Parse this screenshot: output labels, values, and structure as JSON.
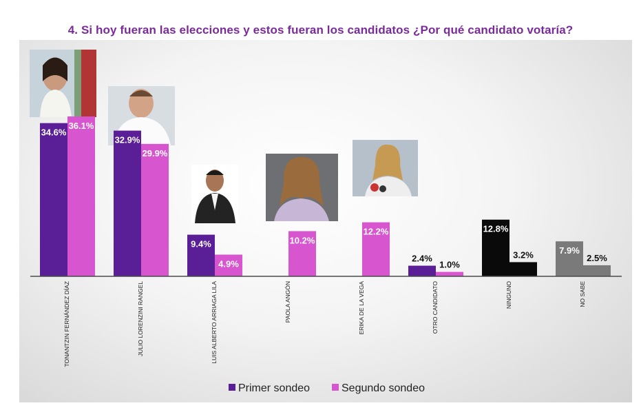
{
  "chart_data": {
    "type": "bar",
    "title": "4. Si hoy fueran las elecciones y estos fueran los candidatos ¿Por qué candidato votaría?",
    "categories": [
      "TONANTZIN FERNÁNDEZ DÍAZ",
      "JULIO LORENZINI RANGEL",
      "LUIS ALBERTO ARRIAGA LILA",
      "PAOLA ANGÓN",
      "ERIKA DE LA VEGA",
      "OTRO CANDIDATO",
      "NINGUNO",
      "NO SABE"
    ],
    "series": [
      {
        "name": "Primer sondeo",
        "color": "#5a1e96",
        "values": [
          34.6,
          32.9,
          9.4,
          null,
          null,
          2.4,
          12.8,
          7.9
        ],
        "labels": [
          "34.6%",
          "32.9%",
          "9.4%",
          "",
          "",
          "2.4%",
          "12.8%",
          "7.9%"
        ]
      },
      {
        "name": "Segundo sondeo",
        "color": "#d855d0",
        "values": [
          36.1,
          29.9,
          4.9,
          10.2,
          12.2,
          1.0,
          3.2,
          2.5
        ],
        "labels": [
          "36.1%",
          "29.9%",
          "4.9%",
          "10.2%",
          "12.2%",
          "1.0%",
          "3.2%",
          "2.5%"
        ]
      }
    ],
    "overrides": {
      "NINGUNO": {
        "color": "#0a0a0a"
      },
      "NO SABE": {
        "color": "#7a7a7a"
      }
    },
    "legend": "bottom",
    "grid": false,
    "ylim": [
      0,
      40
    ]
  }
}
